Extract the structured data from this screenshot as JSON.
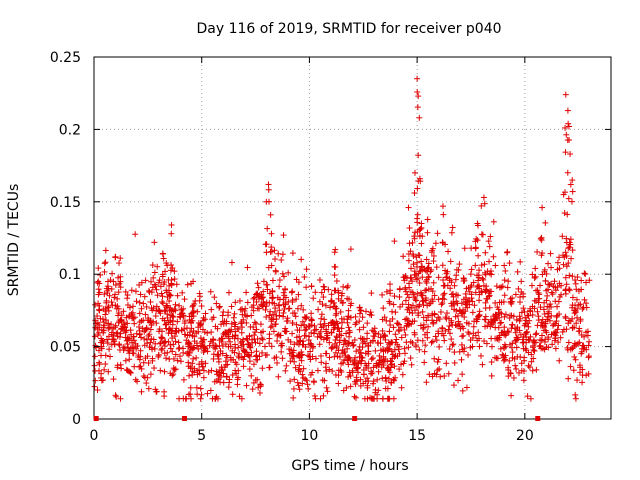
{
  "chart_data": {
    "type": "scatter",
    "title": "Day 116 of 2019, SRMTID for receiver p040",
    "xlabel": "GPS time / hours",
    "ylabel": "SRMTID / TECUs",
    "xlim": [
      0,
      24
    ],
    "ylim": [
      0,
      0.25
    ],
    "xticks": [
      0,
      5,
      10,
      15,
      20
    ],
    "xtick_labels": [
      "0",
      "5",
      "10",
      "15",
      "20"
    ],
    "yticks": [
      0,
      0.05,
      0.1,
      0.15,
      0.2,
      0.25
    ],
    "ytick_labels": [
      "0",
      "0.05",
      "0.1",
      "0.15",
      "0.2",
      "0.25"
    ],
    "grid": true,
    "marker_style": "plus",
    "point_color": "#e00000",
    "axis_markers_x": [
      0.1,
      4.2,
      12.1,
      20.6
    ],
    "series": [
      {
        "name": "SRMTID",
        "trend": [
          [
            0.0,
            0.058
          ],
          [
            0.5,
            0.062
          ],
          [
            1.0,
            0.066
          ],
          [
            1.5,
            0.06
          ],
          [
            2.0,
            0.058
          ],
          [
            2.5,
            0.055
          ],
          [
            3.0,
            0.064
          ],
          [
            3.5,
            0.068
          ],
          [
            4.0,
            0.058
          ],
          [
            4.5,
            0.05
          ],
          [
            5.0,
            0.052
          ],
          [
            5.5,
            0.048
          ],
          [
            6.0,
            0.05
          ],
          [
            6.5,
            0.052
          ],
          [
            7.0,
            0.05
          ],
          [
            7.5,
            0.058
          ],
          [
            8.0,
            0.068
          ],
          [
            8.5,
            0.074
          ],
          [
            9.0,
            0.064
          ],
          [
            9.5,
            0.054
          ],
          [
            10.0,
            0.05
          ],
          [
            10.5,
            0.052
          ],
          [
            11.0,
            0.058
          ],
          [
            11.5,
            0.062
          ],
          [
            12.0,
            0.048
          ],
          [
            12.5,
            0.04
          ],
          [
            13.0,
            0.04
          ],
          [
            13.5,
            0.045
          ],
          [
            14.0,
            0.055
          ],
          [
            14.5,
            0.07
          ],
          [
            15.0,
            0.092
          ],
          [
            15.5,
            0.078
          ],
          [
            16.0,
            0.082
          ],
          [
            16.5,
            0.075
          ],
          [
            17.0,
            0.068
          ],
          [
            17.5,
            0.08
          ],
          [
            18.0,
            0.082
          ],
          [
            18.5,
            0.075
          ],
          [
            19.0,
            0.066
          ],
          [
            19.5,
            0.058
          ],
          [
            20.0,
            0.054
          ],
          [
            20.5,
            0.068
          ],
          [
            21.0,
            0.078
          ],
          [
            21.5,
            0.074
          ],
          [
            22.0,
            0.09
          ],
          [
            22.5,
            0.062
          ],
          [
            23.0,
            0.058
          ]
        ],
        "spikes": [
          [
            0.2,
            0.095
          ],
          [
            1.0,
            0.112
          ],
          [
            2.8,
            0.122
          ],
          [
            3.2,
            0.114
          ],
          [
            3.6,
            0.134
          ],
          [
            4.6,
            0.095
          ],
          [
            8.0,
            0.15
          ],
          [
            8.1,
            0.162
          ],
          [
            8.2,
            0.141
          ],
          [
            8.8,
            0.127
          ],
          [
            11.2,
            0.117
          ],
          [
            14.6,
            0.146
          ],
          [
            14.9,
            0.17
          ],
          [
            15.0,
            0.235
          ],
          [
            15.05,
            0.223
          ],
          [
            15.1,
            0.208
          ],
          [
            15.2,
            0.135
          ],
          [
            16.2,
            0.147
          ],
          [
            17.8,
            0.135
          ],
          [
            18.1,
            0.153
          ],
          [
            18.4,
            0.126
          ],
          [
            20.8,
            0.146
          ],
          [
            21.8,
            0.155
          ],
          [
            21.9,
            0.224
          ],
          [
            22.0,
            0.213
          ],
          [
            22.05,
            0.202
          ],
          [
            22.1,
            0.183
          ],
          [
            22.2,
            0.165
          ]
        ],
        "n_points": 2300
      }
    ]
  }
}
